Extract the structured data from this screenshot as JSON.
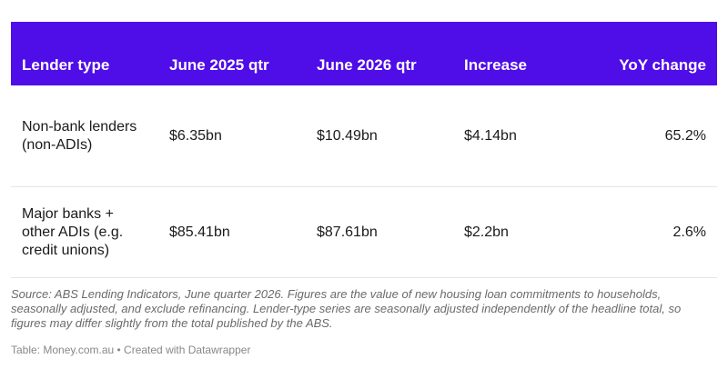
{
  "chart_data": {
    "type": "table",
    "columns": [
      "Lender type",
      "June 2025 qtr",
      "June 2026 qtr",
      "Increase",
      "YoY change"
    ],
    "rows": [
      {
        "lender_type": "Non-bank lenders (non-ADIs)",
        "june_2025": "$6.35bn",
        "june_2026": "$10.49bn",
        "increase": "$4.14bn",
        "yoy_change": "65.2%"
      },
      {
        "lender_type": "Major banks + other ADIs (e.g. credit unions)",
        "june_2025": "$85.41bn",
        "june_2026": "$87.61bn",
        "increase": "$2.2bn",
        "yoy_change": "2.6%"
      }
    ],
    "notes": "Source: ABS Lending Indicators, June quarter 2026. Figures are the value of new housing loan commitments to households, seasonally adjusted, and exclude refinancing. Lender-type series are seasonally adjusted independently of the headline total, so figures may differ slightly from the total published by the ABS.",
    "credit": "Table: Money.com.au • Created with Datawrapper"
  },
  "colors": {
    "header_background": "#4f0de8",
    "header_text": "#ffffff",
    "row_divider": "#e4e4e4",
    "notes_text": "#6a6a6a"
  }
}
